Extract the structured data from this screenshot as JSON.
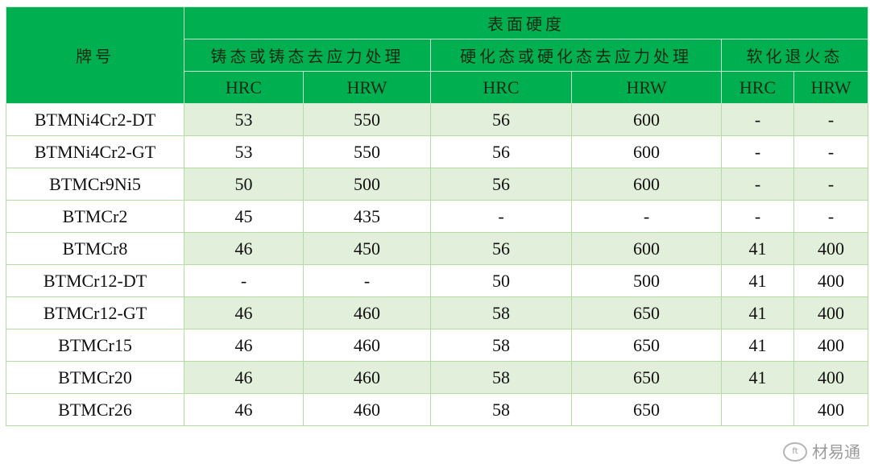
{
  "header": {
    "grade": "牌号",
    "surface_hardness": "表面硬度",
    "groups": [
      "铸态或铸态去应力处理",
      "硬化态或硬化态去应力处理",
      "软化退火态"
    ],
    "subcols": [
      "HRC",
      "HRW",
      "HRC",
      "HRW",
      "HRC",
      "HRW"
    ]
  },
  "rows": [
    {
      "name": "BTMNi4Cr2-DT",
      "values": [
        "53",
        "550",
        "56",
        "600",
        "-",
        "-"
      ]
    },
    {
      "name": "BTMNi4Cr2-GT",
      "values": [
        "53",
        "550",
        "56",
        "600",
        "-",
        "-"
      ]
    },
    {
      "name": "BTMCr9Ni5",
      "values": [
        "50",
        "500",
        "56",
        "600",
        "-",
        "-"
      ]
    },
    {
      "name": "BTMCr2",
      "values": [
        "45",
        "435",
        "-",
        "-",
        "-",
        "-"
      ]
    },
    {
      "name": "BTMCr8",
      "values": [
        "46",
        "450",
        "56",
        "600",
        "41",
        "400"
      ]
    },
    {
      "name": "BTMCr12-DT",
      "values": [
        "-",
        "-",
        "50",
        "500",
        "41",
        "400"
      ]
    },
    {
      "name": "BTMCr12-GT",
      "values": [
        "46",
        "460",
        "58",
        "650",
        "41",
        "400"
      ]
    },
    {
      "name": "BTMCr15",
      "values": [
        "46",
        "460",
        "58",
        "650",
        "41",
        "400"
      ]
    },
    {
      "name": "BTMCr20",
      "values": [
        "46",
        "460",
        "58",
        "650",
        "41",
        "400"
      ]
    },
    {
      "name": "BTMCr26",
      "values": [
        "46",
        "460",
        "58",
        "650",
        "",
        "400"
      ]
    }
  ],
  "watermark": "材易通",
  "colors": {
    "header": "#00b050",
    "shade": "#e2efda",
    "border": "#b4dca0"
  }
}
